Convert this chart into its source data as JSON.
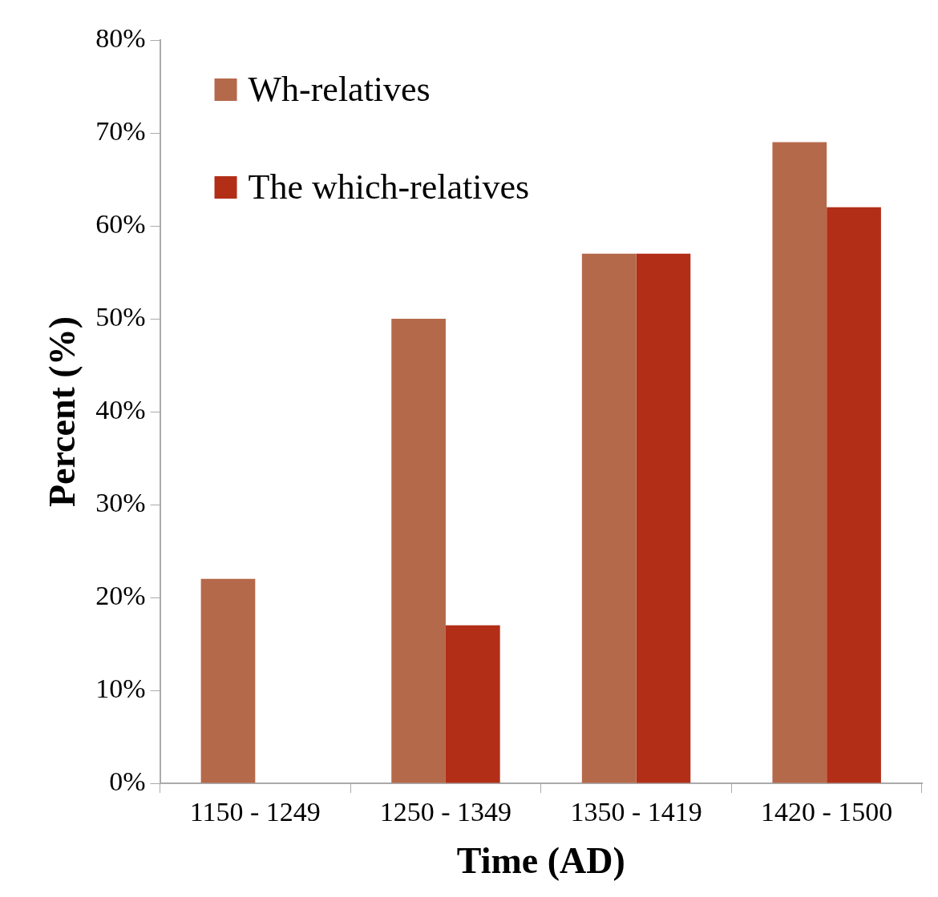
{
  "chart_data": {
    "type": "bar",
    "xlabel": "Time (AD)",
    "ylabel": "Percent (%)",
    "categories": [
      "1150 - 1249",
      "1250 - 1349",
      "1350 - 1419",
      "1420 - 1500"
    ],
    "series": [
      {
        "name": "Wh-relatives",
        "color": "#b5694b",
        "values": [
          22,
          50,
          57,
          69
        ]
      },
      {
        "name": "The which-relatives",
        "color": "#b22e17",
        "values": [
          0,
          17,
          57,
          62
        ]
      }
    ],
    "ylim": [
      0,
      80
    ],
    "yticks": [
      {
        "value": 0,
        "label": "0%"
      },
      {
        "value": 10,
        "label": "10%"
      },
      {
        "value": 20,
        "label": "20%"
      },
      {
        "value": 30,
        "label": "30%"
      },
      {
        "value": 40,
        "label": "40%"
      },
      {
        "value": 50,
        "label": "50%"
      },
      {
        "value": 60,
        "label": "60%"
      },
      {
        "value": 70,
        "label": "70%"
      },
      {
        "value": 80,
        "label": "80%"
      }
    ],
    "grid": false,
    "legend": "top left"
  }
}
